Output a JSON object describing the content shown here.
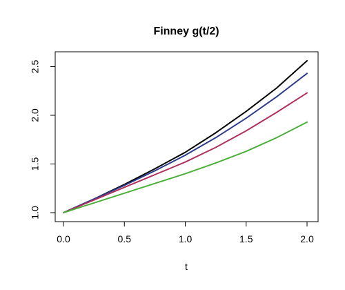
{
  "chart_data": {
    "type": "line",
    "title": "Finney g(t/2)",
    "xlabel": "t",
    "ylabel": "",
    "xlim": [
      0.0,
      2.0
    ],
    "ylim": [
      1.0,
      2.56
    ],
    "xticks": [
      "0.0",
      "0.5",
      "1.0",
      "1.5",
      "2.0"
    ],
    "yticks": [
      "1.0",
      "1.5",
      "2.0",
      "2.5"
    ],
    "grid": false,
    "legend": "none",
    "x": [
      0.0,
      0.25,
      0.5,
      0.75,
      1.0,
      1.25,
      1.5,
      1.75,
      2.0
    ],
    "series": [
      {
        "color": "#000000",
        "values": [
          1.0,
          1.14,
          1.29,
          1.45,
          1.62,
          1.82,
          2.04,
          2.28,
          2.56
        ]
      },
      {
        "color": "#2c3c8c",
        "values": [
          1.0,
          1.14,
          1.28,
          1.43,
          1.59,
          1.77,
          1.97,
          2.19,
          2.43
        ]
      },
      {
        "color": "#b0305c",
        "values": [
          1.0,
          1.13,
          1.26,
          1.39,
          1.52,
          1.67,
          1.84,
          2.03,
          2.23
        ]
      },
      {
        "color": "#4caf3a",
        "values": [
          1.0,
          1.1,
          1.2,
          1.3,
          1.4,
          1.51,
          1.63,
          1.77,
          1.93
        ]
      }
    ]
  }
}
